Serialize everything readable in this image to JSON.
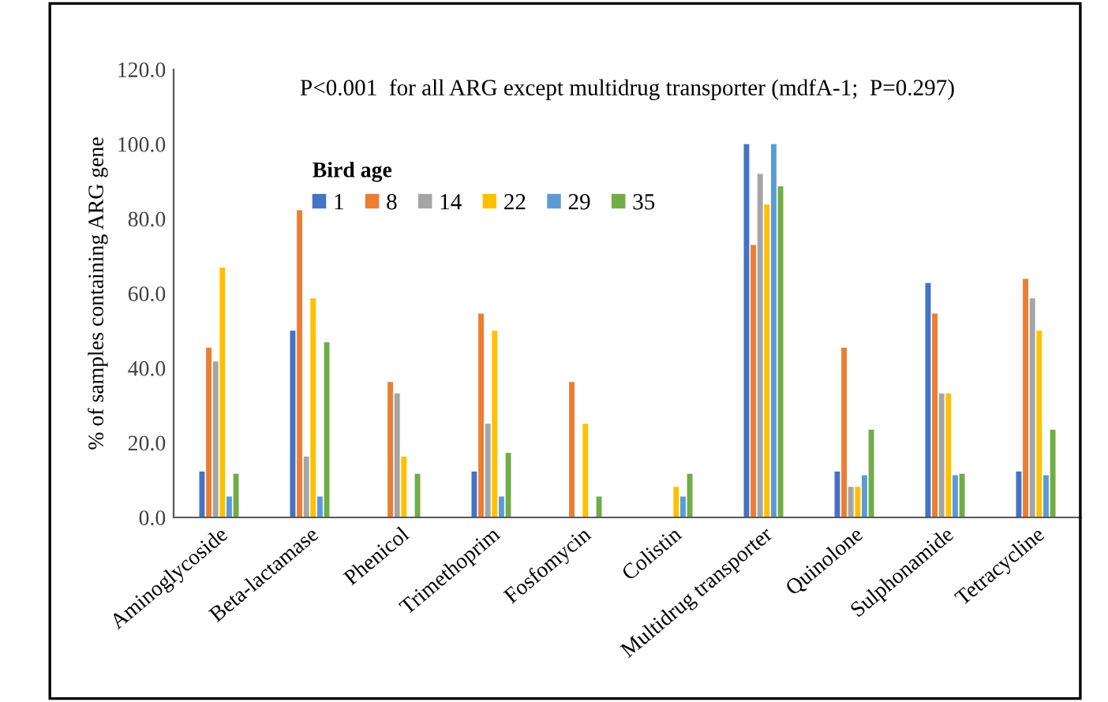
{
  "chart_data": {
    "type": "bar",
    "title": "P<0.001  for all ARG except multidrug transporter (mdfA-1;  P=0.297)",
    "ylabel": "% of samples containing ARG gene",
    "legend_title": "Bird age",
    "categories": [
      "Aminoglycoside",
      "Beta-lactamase",
      "Phenicol",
      "Trimethoprim",
      "Fosfomycin",
      "Colistin",
      "Multidrug transporter",
      "Quinolone",
      "Sulphonamide",
      "Tetracycline"
    ],
    "series": [
      {
        "name": "1",
        "color": "#4472c4",
        "values": [
          12.3,
          50,
          0,
          12.3,
          0,
          0,
          100,
          12.3,
          62.8,
          12.3
        ]
      },
      {
        "name": "8",
        "color": "#ed7d31",
        "values": [
          45.5,
          82.3,
          36.3,
          54.6,
          36.3,
          0,
          73,
          45.5,
          54.6,
          63.9
        ]
      },
      {
        "name": "14",
        "color": "#a5a5a5",
        "values": [
          41.8,
          16.3,
          33.2,
          25.1,
          0,
          0,
          92,
          8.2,
          33.2,
          58.7
        ]
      },
      {
        "name": "22",
        "color": "#ffc000",
        "values": [
          66.9,
          58.7,
          16.3,
          50,
          25.1,
          8.2,
          83.8,
          8.2,
          33.2,
          50
        ]
      },
      {
        "name": "29",
        "color": "#5b9bd5",
        "values": [
          5.6,
          5.6,
          0,
          5.6,
          0,
          5.6,
          100,
          11.3,
          11.3,
          11.3
        ]
      },
      {
        "name": "35",
        "color": "#70ad47",
        "values": [
          11.7,
          46.9,
          11.7,
          17.3,
          5.6,
          11.7,
          88.7,
          23.5,
          11.7,
          23.5
        ]
      }
    ],
    "ylim": [
      0,
      120
    ],
    "yticks": [
      {
        "value": 0,
        "label": "0.0"
      },
      {
        "value": 20,
        "label": "20.0"
      },
      {
        "value": 40,
        "label": "40.0"
      },
      {
        "value": 60,
        "label": "60.0"
      },
      {
        "value": 80,
        "label": "80.0"
      },
      {
        "value": 100,
        "label": "100.0"
      },
      {
        "value": 120,
        "label": "120.0"
      }
    ],
    "grid": false,
    "legend": "top left"
  }
}
